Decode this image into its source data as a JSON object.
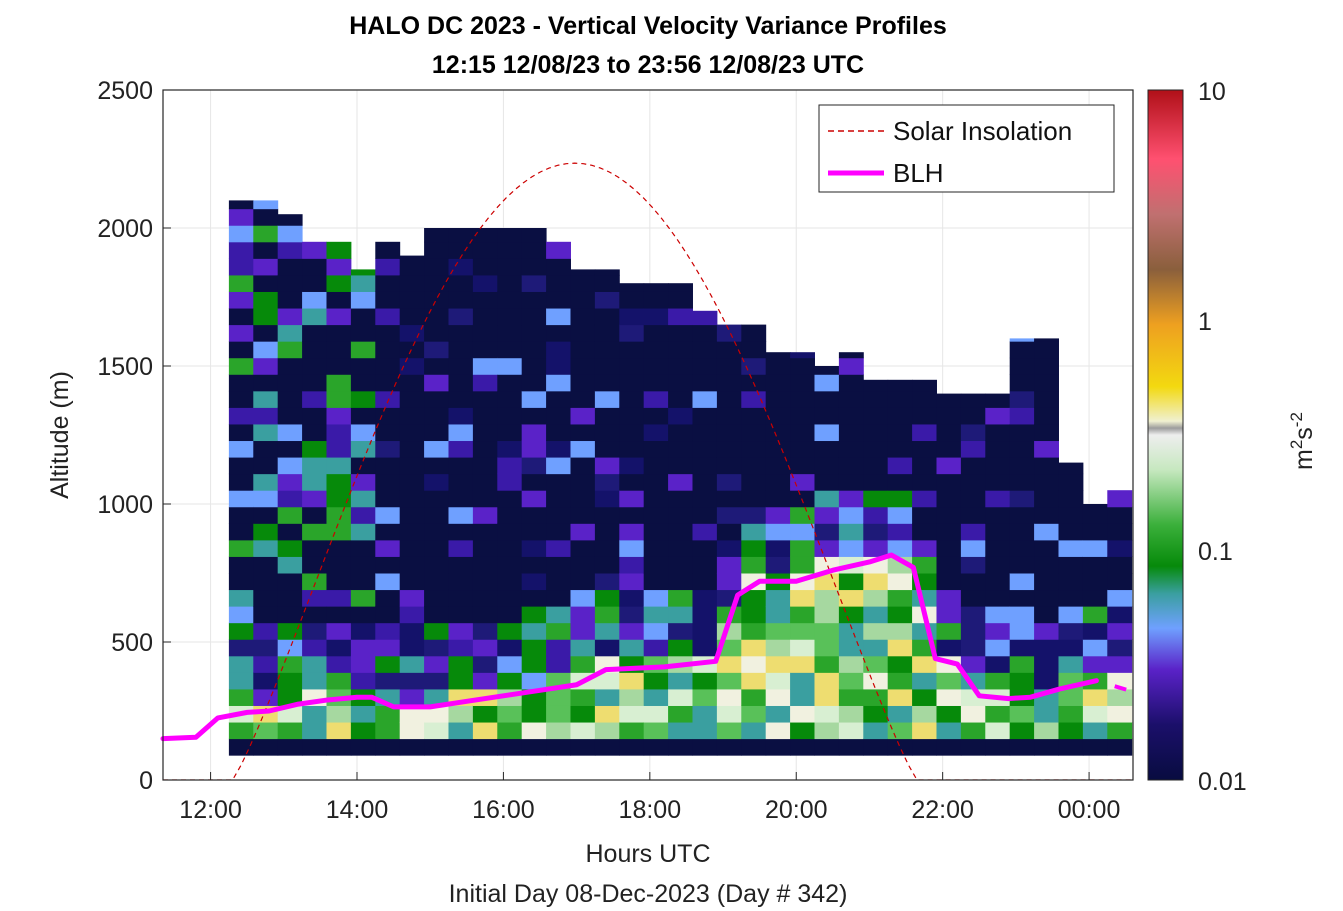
{
  "chart_data": {
    "type": "heatmap",
    "title": "HALO DC 2023 - Vertical Velocity Variance Profiles",
    "subtitle": "12:15 12/08/23 to 23:56 12/08/23  UTC",
    "xlabel": "Hours UTC",
    "ylabel": "Altitude (m)",
    "footer": "Initial Day 08-Dec-2023 (Day # 342)",
    "x_range_hours": [
      11.35,
      24.6
    ],
    "ylim": [
      0,
      2500
    ],
    "x_ticks": [
      {
        "value": 12,
        "label": "12:00"
      },
      {
        "value": 14,
        "label": "14:00"
      },
      {
        "value": 16,
        "label": "16:00"
      },
      {
        "value": 18,
        "label": "18:00"
      },
      {
        "value": 20,
        "label": "20:00"
      },
      {
        "value": 22,
        "label": "22:00"
      },
      {
        "value": 24,
        "label": "00:00"
      }
    ],
    "y_ticks": [
      {
        "value": 0,
        "label": "0"
      },
      {
        "value": 500,
        "label": "500"
      },
      {
        "value": 1000,
        "label": "1000"
      },
      {
        "value": 1500,
        "label": "1500"
      },
      {
        "value": 2000,
        "label": "2000"
      },
      {
        "value": 2500,
        "label": "2500"
      }
    ],
    "grid": true,
    "legend": {
      "placement": "top-right",
      "items": [
        {
          "name": "Solar Insolation",
          "style": "dashed",
          "color": "#cc0000"
        },
        {
          "name": "BLH",
          "style": "solid",
          "color": "#ff00ff"
        }
      ]
    },
    "colorbar": {
      "scale": "log",
      "range": [
        0.01,
        10
      ],
      "unit_base": "m",
      "unit_exp1": "2",
      "unit_mid": "s",
      "unit_exp2": "-2",
      "ticks": [
        {
          "value": 0.01,
          "label": "0.01"
        },
        {
          "value": 0.1,
          "label": "0.1"
        },
        {
          "value": 1,
          "label": "1"
        },
        {
          "value": 10,
          "label": "10"
        }
      ]
    },
    "heatmap": {
      "x_start_hours": 12.25,
      "x_step_hours": 0.3333,
      "z_start_m": 90,
      "z_step_m": 30,
      "max_altitude_per_column_m": [
        2100,
        2100,
        2050,
        1950,
        1950,
        1850,
        1950,
        1900,
        2000,
        2000,
        2000,
        2000,
        2000,
        1950,
        1850,
        1850,
        1800,
        1800,
        1800,
        1700,
        1650,
        1650,
        1550,
        1550,
        1500,
        1550,
        1450,
        1450,
        1450,
        1400,
        1400,
        1400,
        1600,
        1600,
        1150,
        1000,
        1050
      ]
    },
    "blh_line": {
      "name": "BLH",
      "x": [
        11.35,
        11.8,
        12.1,
        12.5,
        12.8,
        13.2,
        13.6,
        14.0,
        14.2,
        14.5,
        15.0,
        15.5,
        16.0,
        16.5,
        17.0,
        17.4,
        17.8,
        18.2,
        18.9,
        19.2,
        19.5,
        20.0,
        20.5,
        21.0,
        21.3,
        21.6,
        21.9,
        22.2,
        22.5,
        22.9,
        23.2,
        23.6,
        24.1
      ],
      "y": [
        150,
        155,
        225,
        245,
        250,
        275,
        290,
        300,
        300,
        265,
        265,
        285,
        305,
        325,
        345,
        400,
        405,
        410,
        430,
        670,
        720,
        720,
        760,
        790,
        815,
        770,
        440,
        420,
        305,
        295,
        300,
        330,
        360
      ],
      "extra_segment_x": [
        24.35,
        24.6
      ],
      "extra_segment_y": [
        340,
        320
      ]
    },
    "solar_insolation": {
      "name": "Solar Insolation",
      "start_hour": 12.3,
      "end_hour": 21.65,
      "peak_hour": 16.98,
      "peak_altitude_equivalent": 2235
    }
  }
}
